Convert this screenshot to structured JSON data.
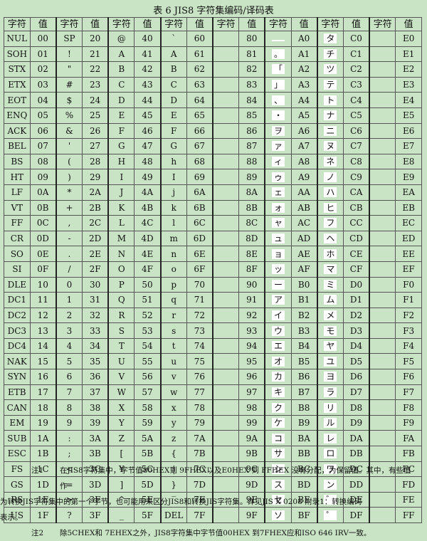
{
  "title": "表 6   JIS8 字符集编码/译码表",
  "header": [
    "字符",
    "值",
    "字符",
    "值",
    "字符",
    "值",
    "字符",
    "值",
    "字符",
    "值",
    "字符",
    "值",
    "字符",
    "值",
    "字符",
    "值"
  ],
  "rows": [
    [
      "NUL",
      "00",
      "SP",
      "20",
      "@",
      "40",
      "`",
      "60",
      "",
      "80",
      "",
      "A0",
      "タ",
      "C0",
      "",
      "E0"
    ],
    [
      "SOH",
      "01",
      "!",
      "21",
      "A",
      "41",
      "A",
      "61",
      "",
      "81",
      "。",
      "A1",
      "チ",
      "C1",
      "",
      "E1"
    ],
    [
      "STX",
      "02",
      "\"",
      "22",
      "B",
      "42",
      "B",
      "62",
      "",
      "82",
      "「",
      "A2",
      "ツ",
      "C2",
      "",
      "E2"
    ],
    [
      "ETX",
      "03",
      "#",
      "23",
      "C",
      "43",
      "C",
      "63",
      "",
      "83",
      "」",
      "A3",
      "テ",
      "C3",
      "",
      "E3"
    ],
    [
      "EOT",
      "04",
      "$",
      "24",
      "D",
      "44",
      "D",
      "64",
      "",
      "84",
      "、",
      "A4",
      "ト",
      "C4",
      "",
      "E4"
    ],
    [
      "ENQ",
      "05",
      "%",
      "25",
      "E",
      "45",
      "E",
      "65",
      "",
      "85",
      "・",
      "A5",
      "ナ",
      "C5",
      "",
      "E5"
    ],
    [
      "ACK",
      "06",
      "&",
      "26",
      "F",
      "46",
      "F",
      "66",
      "",
      "86",
      "ヲ",
      "A6",
      "ニ",
      "C6",
      "",
      "E6"
    ],
    [
      "BEL",
      "07",
      "'",
      "27",
      "G",
      "47",
      "G",
      "67",
      "",
      "87",
      "ァ",
      "A7",
      "ヌ",
      "C7",
      "",
      "E7"
    ],
    [
      "BS",
      "08",
      "(",
      "28",
      "H",
      "48",
      "h",
      "68",
      "",
      "88",
      "ィ",
      "A8",
      "ネ",
      "C8",
      "",
      "E8"
    ],
    [
      "HT",
      "09",
      ")",
      "29",
      "I",
      "49",
      "I",
      "69",
      "",
      "89",
      "ゥ",
      "A9",
      "ノ",
      "C9",
      "",
      "E9"
    ],
    [
      "LF",
      "0A",
      "*",
      "2A",
      "J",
      "4A",
      "j",
      "6A",
      "",
      "8A",
      "ェ",
      "AA",
      "ハ",
      "CA",
      "",
      "EA"
    ],
    [
      "VT",
      "0B",
      "+",
      "2B",
      "K",
      "4B",
      "k",
      "6B",
      "",
      "8B",
      "ォ",
      "AB",
      "ヒ",
      "CB",
      "",
      "EB"
    ],
    [
      "FF",
      "0C",
      ",",
      "2C",
      "L",
      "4C",
      "l",
      "6C",
      "",
      "8C",
      "ャ",
      "AC",
      "フ",
      "CC",
      "",
      "EC"
    ],
    [
      "CR",
      "0D",
      "-",
      "2D",
      "M",
      "4D",
      "m",
      "6D",
      "",
      "8D",
      "ュ",
      "AD",
      "ヘ",
      "CD",
      "",
      "ED"
    ],
    [
      "SO",
      "0E",
      ".",
      "2E",
      "N",
      "4E",
      "n",
      "6E",
      "",
      "8E",
      "ョ",
      "AE",
      "ホ",
      "CE",
      "",
      "EE"
    ],
    [
      "SI",
      "0F",
      "/",
      "2F",
      "O",
      "4F",
      "o",
      "6F",
      "",
      "8F",
      "ッ",
      "AF",
      "マ",
      "CF",
      "",
      "EF"
    ],
    [
      "DLE",
      "10",
      "0",
      "30",
      "P",
      "50",
      "p",
      "70",
      "",
      "90",
      "ー",
      "B0",
      "ミ",
      "D0",
      "",
      "F0"
    ],
    [
      "DC1",
      "11",
      "1",
      "31",
      "Q",
      "51",
      "q",
      "71",
      "",
      "91",
      "ア",
      "B1",
      "ム",
      "D1",
      "",
      "F1"
    ],
    [
      "DC2",
      "12",
      "2",
      "32",
      "R",
      "52",
      "r",
      "72",
      "",
      "92",
      "イ",
      "B2",
      "メ",
      "D2",
      "",
      "F2"
    ],
    [
      "DC3",
      "13",
      "3",
      "33",
      "S",
      "53",
      "s",
      "73",
      "",
      "93",
      "ウ",
      "B3",
      "モ",
      "D3",
      "",
      "F3"
    ],
    [
      "DC4",
      "14",
      "4",
      "34",
      "T",
      "54",
      "t",
      "74",
      "",
      "94",
      "エ",
      "B4",
      "ヤ",
      "D4",
      "",
      "F4"
    ],
    [
      "NAK",
      "15",
      "5",
      "35",
      "U",
      "55",
      "u",
      "75",
      "",
      "95",
      "オ",
      "B5",
      "ユ",
      "D5",
      "",
      "F5"
    ],
    [
      "SYN",
      "16",
      "6",
      "36",
      "V",
      "56",
      "v",
      "76",
      "",
      "96",
      "カ",
      "B6",
      "ヨ",
      "D6",
      "",
      "F6"
    ],
    [
      "ETB",
      "17",
      "7",
      "37",
      "W",
      "57",
      "w",
      "77",
      "",
      "97",
      "キ",
      "B7",
      "ラ",
      "D7",
      "",
      "F7"
    ],
    [
      "CAN",
      "18",
      "8",
      "38",
      "X",
      "58",
      "x",
      "78",
      "",
      "98",
      "ク",
      "B8",
      "リ",
      "D8",
      "",
      "F8"
    ],
    [
      "EM",
      "19",
      "9",
      "39",
      "Y",
      "59",
      "y",
      "79",
      "",
      "99",
      "ケ",
      "B9",
      "ル",
      "D9",
      "",
      "F9"
    ],
    [
      "SUB",
      "1A",
      ":",
      "3A",
      "Z",
      "5A",
      "z",
      "7A",
      "",
      "9A",
      "コ",
      "BA",
      "レ",
      "DA",
      "",
      "FA"
    ],
    [
      "ESC",
      "1B",
      ";",
      "3B",
      "[",
      "5B",
      "{",
      "7B",
      "",
      "9B",
      "サ",
      "BB",
      "ロ",
      "DB",
      "",
      "FB"
    ],
    [
      "FS",
      "1C",
      "<",
      "3C",
      "¥",
      "5C",
      "|",
      "7C",
      "",
      "9C",
      "シ",
      "BC",
      "ワ",
      "DC",
      "",
      "FC"
    ],
    [
      "GS",
      "1D",
      "=",
      "3D",
      "]",
      "5D",
      "}",
      "7D",
      "",
      "9D",
      "ス",
      "BD",
      "ン",
      "DD",
      "",
      "FD"
    ],
    [
      "RS",
      "1E",
      ">",
      "3E",
      "^",
      "5E",
      "‾",
      "7E",
      "",
      "9E",
      "セ",
      "BE",
      "゛",
      "DE",
      "",
      "FE"
    ],
    [
      "US",
      "1F",
      "?",
      "3F",
      "_",
      "5F",
      "DEL",
      "7F",
      "",
      "9F",
      "ソ",
      "BF",
      "゜",
      "DF",
      "",
      "FF"
    ]
  ],
  "notes": {
    "note1_label": "注1",
    "note1_text": "在JIS8字符集中，字节值80HEX到 9FHEX以及E0HEX 到 FFHEX 没有分配，为保留值。其中，有些值作",
    "note1_cont1": "为转换JIS字符集中的第一个字节，也可能用来区分JIS8和转换JIS字符集。详见JIS X 0208 附录1：转换编码",
    "note1_cont2": "表示。",
    "note2_label": "注2",
    "note2_text": "除5CHEX和 7EHEX之外，JIS8字符集中字节值00HEX 到7FHEX应和ISO 646 IRV一致。"
  }
}
